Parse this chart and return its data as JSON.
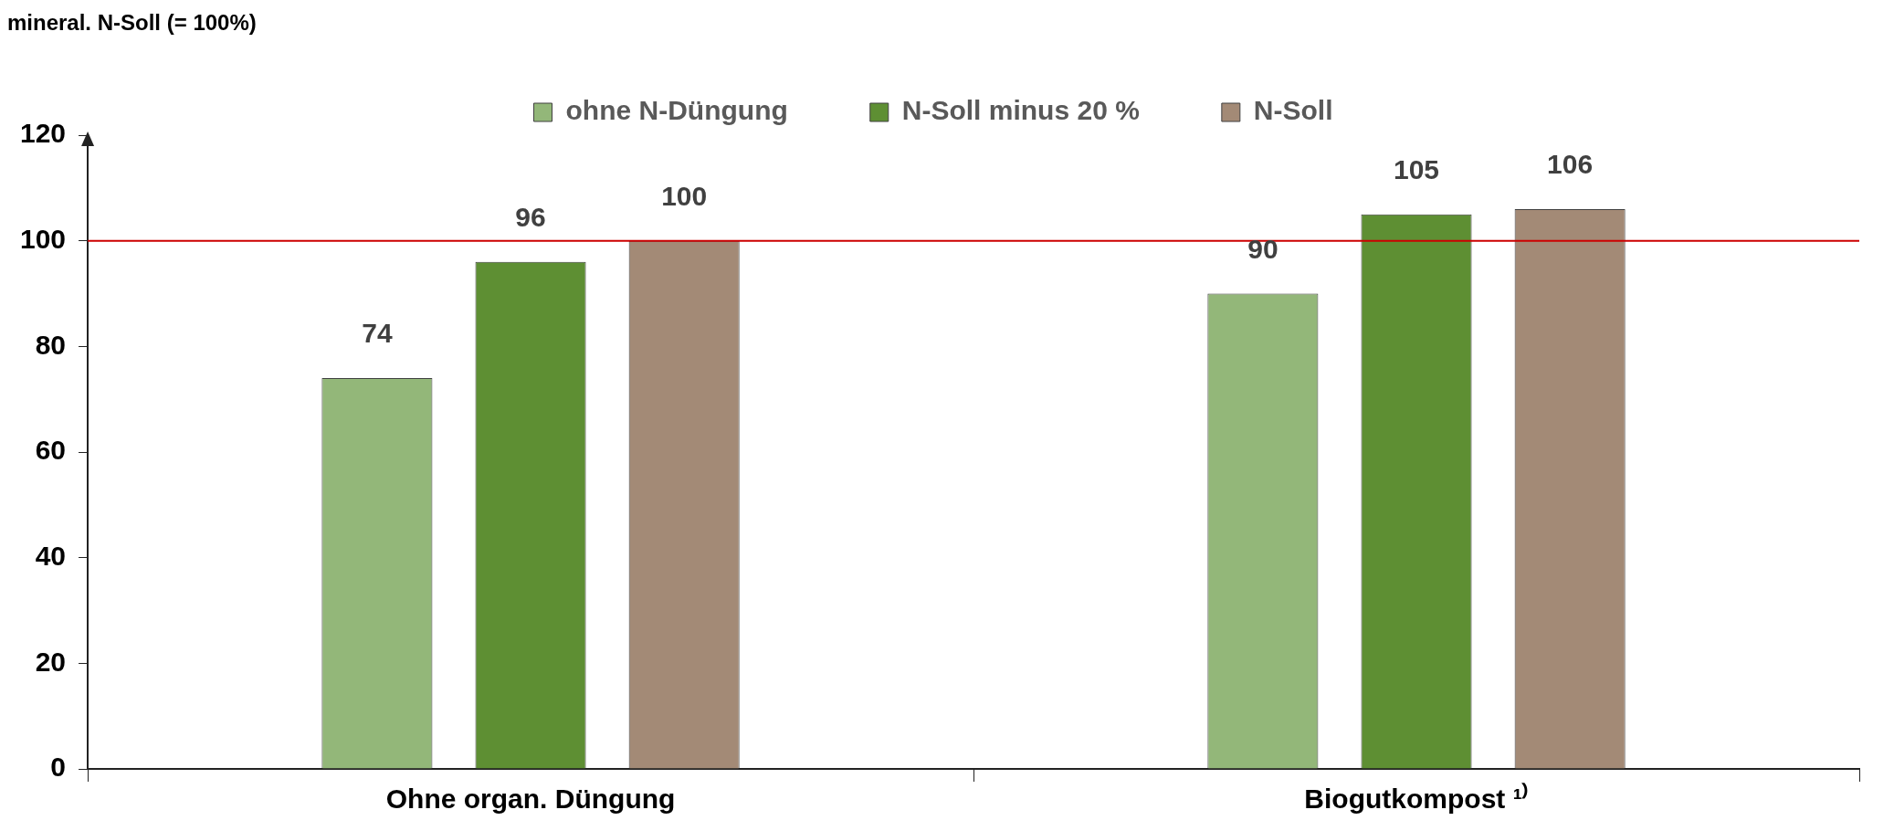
{
  "chart_data": {
    "type": "bar",
    "ylabel": "mineral. N-Soll (= 100%)",
    "categories": [
      "Ohne organ. Düngung",
      "Biogutkompost ¹⁾"
    ],
    "series": [
      {
        "name": "ohne N-Düngung",
        "color": "#93b779",
        "values": [
          74,
          90
        ]
      },
      {
        "name": "N-Soll minus 20 %",
        "color": "#5e8f33",
        "values": [
          96,
          105
        ]
      },
      {
        "name": "N-Soll",
        "color": "#a38a76",
        "values": [
          100,
          106
        ]
      }
    ],
    "ylim": [
      0,
      120
    ],
    "yticks": [
      0,
      20,
      40,
      60,
      80,
      100,
      120
    ],
    "ref_lines": [
      {
        "axis": "y",
        "value": 100,
        "color": "#cc0000"
      }
    ],
    "data_labels": true,
    "grid": false,
    "legend": "top"
  }
}
